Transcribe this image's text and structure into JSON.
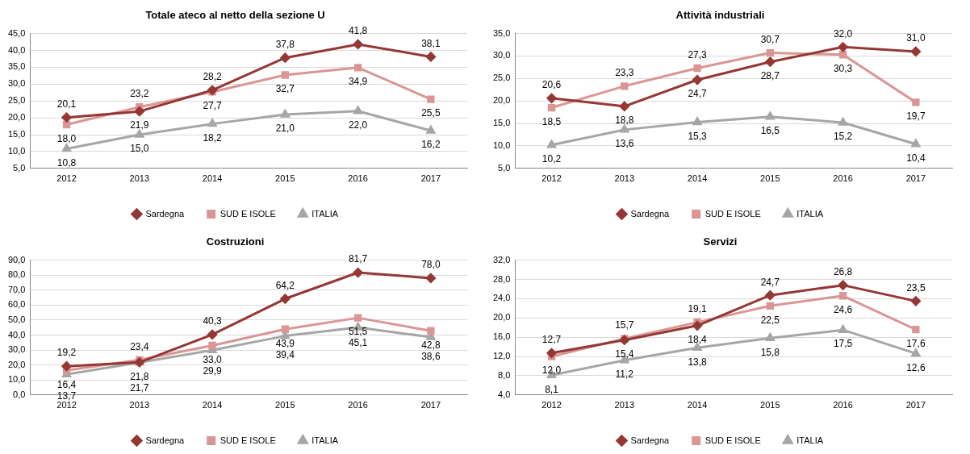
{
  "chart_data": [
    {
      "type": "line",
      "title": "Totale ateco al netto della sezione U",
      "categories": [
        "2012",
        "2013",
        "2014",
        "2015",
        "2016",
        "2017"
      ],
      "series": [
        {
          "name": "Sardegna",
          "color": "#953735",
          "marker": "diamond",
          "values": [
            20.1,
            21.9,
            28.2,
            37.8,
            41.8,
            38.1
          ],
          "value_labels": [
            "20,1",
            "21,9",
            "28,2",
            "37,8",
            "41,8",
            "38,1"
          ]
        },
        {
          "name": "SUD E ISOLE",
          "color": "#da9694",
          "marker": "square",
          "values": [
            18.0,
            23.2,
            27.7,
            32.7,
            34.9,
            25.5
          ],
          "value_labels": [
            "18,0",
            "23,2",
            "27,7",
            "32,7",
            "34,9",
            "25,5"
          ]
        },
        {
          "name": "ITALIA",
          "color": "#a6a6a6",
          "marker": "triangle",
          "values": [
            10.8,
            15.0,
            18.2,
            21.0,
            22.0,
            16.2
          ],
          "value_labels": [
            "10,8",
            "15,0",
            "18,2",
            "21,0",
            "22,0",
            "16,2"
          ]
        }
      ],
      "ylim": [
        5,
        45
      ],
      "yticks": [
        {
          "value": 5,
          "label": "5,0"
        },
        {
          "value": 10,
          "label": "10,0"
        },
        {
          "value": 15,
          "label": "15,0"
        },
        {
          "value": 20,
          "label": "20,0"
        },
        {
          "value": 25,
          "label": "25,0"
        },
        {
          "value": 30,
          "label": "30,0"
        },
        {
          "value": 35,
          "label": "35,0"
        },
        {
          "value": 40,
          "label": "40,0"
        },
        {
          "value": 45,
          "label": "45,0"
        }
      ],
      "grid": "y",
      "legend": "bottom"
    },
    {
      "type": "line",
      "title": "Attività industriali",
      "categories": [
        "2012",
        "2013",
        "2014",
        "2015",
        "2016",
        "2017"
      ],
      "series": [
        {
          "name": "Sardegna",
          "color": "#953735",
          "marker": "diamond",
          "values": [
            20.6,
            18.8,
            24.7,
            28.7,
            32.0,
            31.0
          ],
          "value_labels": [
            "20,6",
            "18,8",
            "24,7",
            "28,7",
            "32,0",
            "31,0"
          ]
        },
        {
          "name": "SUD E ISOLE",
          "color": "#da9694",
          "marker": "square",
          "values": [
            18.5,
            23.3,
            27.3,
            30.7,
            30.3,
            19.7
          ],
          "value_labels": [
            "18,5",
            "23,3",
            "27,3",
            "30,7",
            "30,3",
            "19,7"
          ]
        },
        {
          "name": "ITALIA",
          "color": "#a6a6a6",
          "marker": "triangle",
          "values": [
            10.2,
            13.6,
            15.3,
            16.5,
            15.2,
            10.4
          ],
          "value_labels": [
            "10,2",
            "13,6",
            "15,3",
            "16,5",
            "15,2",
            "10,4"
          ]
        }
      ],
      "ylim": [
        5,
        35
      ],
      "yticks": [
        {
          "value": 5,
          "label": "5,0"
        },
        {
          "value": 10,
          "label": "10,0"
        },
        {
          "value": 15,
          "label": "15,0"
        },
        {
          "value": 20,
          "label": "20,0"
        },
        {
          "value": 25,
          "label": "25,0"
        },
        {
          "value": 30,
          "label": "30,0"
        },
        {
          "value": 35,
          "label": "35,0"
        }
      ],
      "grid": "y",
      "legend": "bottom"
    },
    {
      "type": "line",
      "title": "Costruzioni",
      "categories": [
        "2012",
        "2013",
        "2014",
        "2015",
        "2016",
        "2017"
      ],
      "series": [
        {
          "name": "Sardegna",
          "color": "#953735",
          "marker": "diamond",
          "values": [
            19.2,
            21.8,
            40.3,
            64.2,
            81.7,
            78.0
          ],
          "value_labels": [
            "19,2",
            "21,8",
            "40,3",
            "64,2",
            "81,7",
            "78,0"
          ]
        },
        {
          "name": "SUD E ISOLE",
          "color": "#da9694",
          "marker": "square",
          "values": [
            16.4,
            23.4,
            33.0,
            43.9,
            51.5,
            42.8
          ],
          "value_labels": [
            "16,4",
            "23,4",
            "33,0",
            "43,9",
            "51,5",
            "42,8"
          ]
        },
        {
          "name": "ITALIA",
          "color": "#a6a6a6",
          "marker": "triangle",
          "values": [
            13.7,
            21.7,
            29.9,
            39.4,
            45.1,
            38.6
          ],
          "value_labels": [
            "13,7",
            "21,7",
            "29,9",
            "39,4",
            "45,1",
            "38,6"
          ]
        }
      ],
      "ylim": [
        0,
        90
      ],
      "yticks": [
        {
          "value": 0,
          "label": "0,0"
        },
        {
          "value": 10,
          "label": "10,0"
        },
        {
          "value": 20,
          "label": "20,0"
        },
        {
          "value": 30,
          "label": "30,0"
        },
        {
          "value": 40,
          "label": "40,0"
        },
        {
          "value": 50,
          "label": "50,0"
        },
        {
          "value": 60,
          "label": "60,0"
        },
        {
          "value": 70,
          "label": "70,0"
        },
        {
          "value": 80,
          "label": "80,0"
        },
        {
          "value": 90,
          "label": "90,0"
        }
      ],
      "grid": "y",
      "legend": "bottom"
    },
    {
      "type": "line",
      "title": "Servizi",
      "categories": [
        "2012",
        "2013",
        "2014",
        "2015",
        "2016",
        "2017"
      ],
      "series": [
        {
          "name": "Sardegna",
          "color": "#953735",
          "marker": "diamond",
          "values": [
            12.7,
            15.4,
            18.4,
            24.7,
            26.8,
            23.5
          ],
          "value_labels": [
            "12,7",
            "15,4",
            "18,4",
            "24,7",
            "26,8",
            "23,5"
          ]
        },
        {
          "name": "SUD E ISOLE",
          "color": "#da9694",
          "marker": "square",
          "values": [
            12.0,
            15.7,
            19.1,
            22.5,
            24.6,
            17.6
          ],
          "value_labels": [
            "12,0",
            "15,7",
            "19,1",
            "22,5",
            "24,6",
            "17,6"
          ]
        },
        {
          "name": "ITALIA",
          "color": "#a6a6a6",
          "marker": "triangle",
          "values": [
            8.1,
            11.2,
            13.8,
            15.8,
            17.5,
            12.6
          ],
          "value_labels": [
            "8,1",
            "11,2",
            "13,8",
            "15,8",
            "17,5",
            "12,6"
          ]
        }
      ],
      "ylim": [
        4,
        32
      ],
      "yticks": [
        {
          "value": 4,
          "label": "4,0"
        },
        {
          "value": 8,
          "label": "8,0"
        },
        {
          "value": 12,
          "label": "12,0"
        },
        {
          "value": 16,
          "label": "16,0"
        },
        {
          "value": 20,
          "label": "20,0"
        },
        {
          "value": 24,
          "label": "24,0"
        },
        {
          "value": 28,
          "label": "28,0"
        },
        {
          "value": 32,
          "label": "32,0"
        }
      ],
      "grid": "y",
      "legend": "bottom"
    }
  ]
}
